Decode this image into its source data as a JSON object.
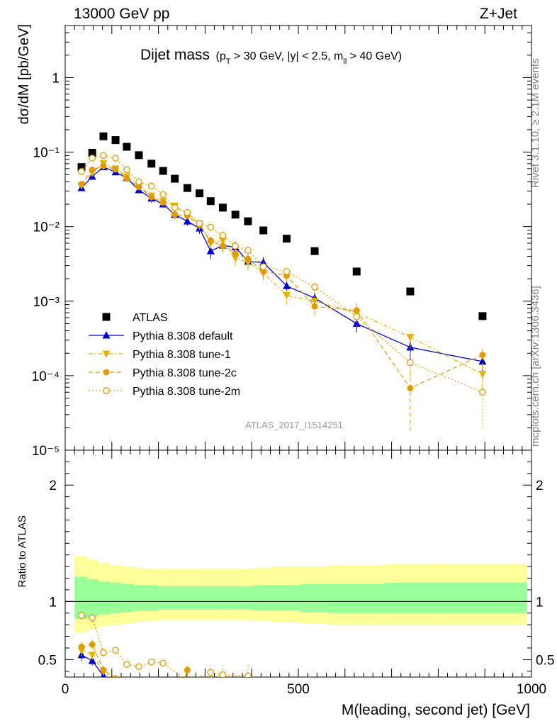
{
  "header": {
    "left": "13000 GeV pp",
    "right": "Z+Jet"
  },
  "title": {
    "main": "Dijet mass",
    "cuts": "(p_T > 30 GeV, |y| < 2.5, m_ll > 40 GeV)"
  },
  "side_labels": {
    "rivet": "Rivet 3.1.10, ≥ 2.1M events",
    "mcplots": "mcplots.cern.ch [arXiv:1306.3436]"
  },
  "analysis_id": "ATLAS_2017_I1514251",
  "colors": {
    "atlas": "#000000",
    "default": "#0000cc",
    "tune1": "#e6b400",
    "tune2c": "#e09b00",
    "tune2m": "#e09b00",
    "band_yellow": "#ffff99",
    "band_green": "#99ff99"
  },
  "chart_data": [
    {
      "type": "scatter",
      "panel": "main",
      "ylabel": "dσ/dM [pb/GeV]",
      "yscale": "log",
      "xlim": [
        0,
        1000
      ],
      "ylim": [
        1e-05,
        5
      ],
      "y_ticks": [
        {
          "v": 1e-05,
          "label": "10⁻⁵"
        },
        {
          "v": 0.0001,
          "label": "10⁻⁴"
        },
        {
          "v": 0.001,
          "label": "10⁻³"
        },
        {
          "v": 0.01,
          "label": "10⁻²"
        },
        {
          "v": 0.1,
          "label": "10⁻¹"
        },
        {
          "v": 1,
          "label": "1"
        }
      ],
      "x": [
        35,
        58,
        82,
        108,
        132,
        158,
        185,
        210,
        235,
        262,
        288,
        312,
        338,
        365,
        392,
        425,
        475,
        535,
        625,
        740,
        895
      ],
      "legend_position": "left-middle",
      "series": [
        {
          "name": "ATLAS",
          "key": "atlas",
          "marker": "square",
          "line": "none",
          "values": [
            0.063,
            0.098,
            0.163,
            0.145,
            0.118,
            0.091,
            0.07,
            0.056,
            0.044,
            0.033,
            0.028,
            0.022,
            0.018,
            0.0145,
            0.0118,
            0.0089,
            0.0069,
            0.0047,
            0.0025,
            0.00135,
            0.00063
          ],
          "err_lo": [
            0,
            0,
            0,
            0,
            0,
            0,
            0,
            0,
            0,
            0,
            0,
            0,
            0,
            0,
            0,
            0,
            0,
            0,
            0,
            0,
            0
          ],
          "err_hi": [
            0,
            0,
            0,
            0,
            0,
            0,
            0,
            0,
            0,
            0,
            0,
            0,
            0,
            0,
            0,
            0,
            0,
            0,
            0,
            0,
            0
          ]
        },
        {
          "name": "Pythia 8.308 default",
          "key": "default",
          "marker": "triangle-up",
          "line": "solid",
          "values": [
            0.033,
            0.047,
            0.063,
            0.054,
            0.045,
            0.031,
            0.024,
            0.02,
            0.0145,
            0.0118,
            0.0095,
            0.0047,
            0.0056,
            0.0053,
            0.0034,
            0.0033,
            0.0016,
            0.0011,
            0.0005,
            0.00024,
            0.000155
          ],
          "err_lo": [
            0.003,
            0.004,
            0.005,
            0.005,
            0.004,
            0.003,
            0.003,
            0.002,
            0.002,
            0.0015,
            0.0015,
            0.001,
            0.001,
            0.001,
            0.0007,
            0.0006,
            0.0003,
            0.0002,
            0.00012,
            8e-05,
            4e-05
          ],
          "err_hi": [
            0.003,
            0.004,
            0.005,
            0.005,
            0.004,
            0.003,
            0.003,
            0.002,
            0.002,
            0.0015,
            0.0015,
            0.001,
            0.001,
            0.001,
            0.0007,
            0.0006,
            0.0003,
            0.0002,
            0.00012,
            8e-05,
            4e-05
          ]
        },
        {
          "name": "Pythia 8.308 tune-1",
          "key": "tune1",
          "marker": "triangle-down",
          "line": "dashdot",
          "values": [
            0.036,
            0.053,
            0.071,
            0.06,
            0.047,
            0.035,
            0.026,
            0.022,
            0.019,
            0.0145,
            0.011,
            0.006,
            0.0065,
            0.0038,
            0.0033,
            0.0024,
            0.0012,
            0.001,
            0.0007,
            0.00033,
            0.000105
          ],
          "err_lo": [
            0.003,
            0.004,
            0.005,
            0.005,
            0.004,
            0.003,
            0.003,
            0.002,
            0.002,
            0.0015,
            0.0015,
            0.001,
            0.001,
            0.0008,
            0.0007,
            0.0005,
            0.0003,
            0.0002,
            0.00015,
            0.0001,
            4e-05
          ],
          "err_hi": [
            0.003,
            0.004,
            0.005,
            0.005,
            0.004,
            0.003,
            0.003,
            0.002,
            0.002,
            0.0015,
            0.0015,
            0.001,
            0.001,
            0.0008,
            0.0007,
            0.0005,
            0.0003,
            0.0002,
            0.00015,
            0.0001,
            4e-05
          ]
        },
        {
          "name": "Pythia 8.308 tune-2c",
          "key": "tune2c",
          "marker": "circle",
          "line": "dashed",
          "values": [
            0.037,
            0.058,
            0.065,
            0.059,
            0.044,
            0.034,
            0.025,
            0.021,
            0.0145,
            0.014,
            0.0105,
            0.0065,
            0.0055,
            0.0044,
            0.0037,
            0.0025,
            0.0022,
            0.00085,
            0.00075,
            6.8e-05,
            0.00019
          ],
          "err_lo": [
            0.003,
            0.004,
            0.005,
            0.005,
            0.004,
            0.003,
            0.003,
            0.002,
            0.002,
            0.0015,
            0.0015,
            0.001,
            0.001,
            0.0008,
            0.0007,
            0.0005,
            0.0004,
            0.0002,
            0.0002,
            5e-05,
            6e-05
          ],
          "err_hi": [
            0.003,
            0.004,
            0.005,
            0.005,
            0.004,
            0.003,
            0.003,
            0.002,
            0.002,
            0.0015,
            0.0015,
            0.001,
            0.001,
            0.0008,
            0.0007,
            0.0005,
            0.0004,
            0.0002,
            0.0002,
            5e-05,
            6e-05
          ]
        },
        {
          "name": "Pythia 8.308 tune-2m",
          "key": "tune2m",
          "marker": "open-circle",
          "line": "dotted",
          "values": [
            0.055,
            0.083,
            0.09,
            0.083,
            0.058,
            0.04,
            0.035,
            0.027,
            0.018,
            0.0155,
            0.011,
            0.0098,
            0.0076,
            0.0055,
            0.0048,
            0.0029,
            0.0025,
            0.00155,
            0.00062,
            0.00015,
            6e-05
          ],
          "err_lo": [
            0.003,
            0.004,
            0.005,
            0.005,
            0.004,
            0.003,
            0.003,
            0.002,
            0.002,
            0.0015,
            0.0015,
            0.001,
            0.001,
            0.0008,
            0.0007,
            0.0005,
            0.0004,
            0.0002,
            0.00015,
            5e-05,
            4e-05
          ],
          "err_hi": [
            0.003,
            0.004,
            0.005,
            0.005,
            0.004,
            0.003,
            0.003,
            0.002,
            0.002,
            0.0015,
            0.0015,
            0.001,
            0.001,
            0.0008,
            0.0007,
            0.0005,
            0.0004,
            0.0002,
            0.00015,
            5e-05,
            4e-05
          ]
        }
      ]
    },
    {
      "type": "scatter",
      "panel": "ratio",
      "ylabel": "Ratio to ATLAS",
      "xlabel": "M(leading, second jet) [GeV]",
      "xlim": [
        0,
        1000
      ],
      "ylim": [
        0.35,
        2.3
      ],
      "x_ticks": [
        0,
        500,
        1000
      ],
      "y_ticks": [
        0.5,
        1,
        2
      ],
      "reference_line": 1,
      "bands": {
        "edges": [
          20,
          47,
          70,
          95,
          120,
          145,
          170,
          198,
          222,
          248,
          275,
          300,
          325,
          350,
          378,
          405,
          445,
          505,
          565,
          685,
          800,
          990
        ],
        "yellow_lo": [
          0.73,
          0.76,
          0.79,
          0.8,
          0.81,
          0.82,
          0.83,
          0.84,
          0.84,
          0.84,
          0.84,
          0.84,
          0.84,
          0.84,
          0.84,
          0.83,
          0.82,
          0.81,
          0.8,
          0.8,
          0.8
        ],
        "yellow_hi": [
          1.39,
          1.36,
          1.33,
          1.31,
          1.3,
          1.29,
          1.28,
          1.28,
          1.28,
          1.28,
          1.28,
          1.28,
          1.28,
          1.28,
          1.28,
          1.29,
          1.3,
          1.3,
          1.31,
          1.32,
          1.32
        ],
        "green_lo": [
          0.85,
          0.87,
          0.89,
          0.9,
          0.91,
          0.92,
          0.92,
          0.93,
          0.93,
          0.93,
          0.93,
          0.93,
          0.93,
          0.93,
          0.93,
          0.92,
          0.92,
          0.91,
          0.9,
          0.9,
          0.9
        ],
        "green_hi": [
          1.21,
          1.19,
          1.17,
          1.16,
          1.15,
          1.14,
          1.14,
          1.13,
          1.13,
          1.13,
          1.13,
          1.13,
          1.13,
          1.13,
          1.13,
          1.14,
          1.14,
          1.15,
          1.15,
          1.16,
          1.16
        ]
      },
      "x": [
        35,
        58,
        82,
        108,
        132,
        158,
        185,
        210,
        262,
        312,
        338,
        392
      ],
      "series": [
        {
          "key": "default",
          "marker": "triangle-up",
          "line": "solid",
          "values": [
            0.54,
            0.49,
            0.36,
            0.3,
            null,
            null,
            null,
            null,
            null,
            null,
            null,
            null
          ],
          "err": [
            0.05,
            0.04,
            0.04,
            0,
            0,
            0,
            0,
            0,
            0,
            0,
            0,
            0
          ]
        },
        {
          "key": "tune1",
          "marker": "triangle-down",
          "line": "dashdot",
          "values": [
            0.58,
            0.54,
            0.4,
            0.3,
            null,
            null,
            null,
            null,
            null,
            null,
            null,
            null
          ],
          "err": [
            0.05,
            0.04,
            0.04,
            0,
            0,
            0,
            0,
            0,
            0,
            0,
            0,
            0
          ]
        },
        {
          "key": "tune2c",
          "marker": "circle",
          "line": "dashed",
          "values": [
            0.61,
            0.63,
            0.41,
            0.34,
            null,
            null,
            null,
            null,
            0.41,
            null,
            null,
            null
          ],
          "err": [
            0.05,
            0.04,
            0.04,
            0.03,
            0,
            0,
            0,
            0,
            0.06,
            0,
            0,
            0
          ]
        },
        {
          "key": "tune2m",
          "marker": "open-circle",
          "line": "dotted",
          "values": [
            0.88,
            0.86,
            0.56,
            0.58,
            0.46,
            0.44,
            0.48,
            0.47,
            0.32,
            0.39,
            0.37,
            0.36
          ],
          "err": [
            0.04,
            0.04,
            0.03,
            0.03,
            0.03,
            0.03,
            0.03,
            0.03,
            0.06,
            0.07,
            0.08,
            0.1
          ]
        }
      ]
    }
  ]
}
